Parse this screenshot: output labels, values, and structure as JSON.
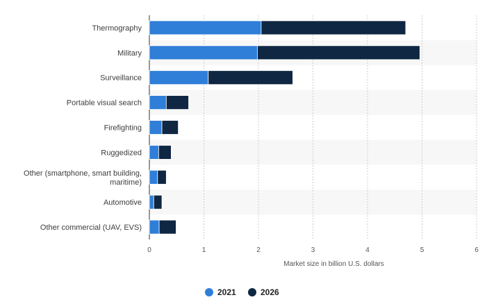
{
  "chart_data": {
    "type": "bar",
    "orientation": "horizontal",
    "stacked": true,
    "categories": [
      "Thermography",
      "Military",
      "Surveillance",
      "Portable visual search",
      "Firefighting",
      "Ruggedized",
      "Other (smartphone, smart building, maritime)",
      "Automotive",
      "Other commercial (UAV, EVS)"
    ],
    "category_lines": [
      [
        "Thermography"
      ],
      [
        "Military"
      ],
      [
        "Surveillance"
      ],
      [
        "Portable visual search"
      ],
      [
        "Firefighting"
      ],
      [
        "Ruggedized"
      ],
      [
        "Other (smartphone, smart building,",
        "maritime)"
      ],
      [
        "Automotive"
      ],
      [
        "Other commercial (UAV, EVS)"
      ]
    ],
    "series": [
      {
        "name": "2021",
        "color": "#2f7ed8",
        "values": [
          2.05,
          1.98,
          1.08,
          0.31,
          0.23,
          0.17,
          0.15,
          0.08,
          0.18
        ]
      },
      {
        "name": "2026",
        "color": "#0f2742",
        "values": [
          2.65,
          2.98,
          1.55,
          0.41,
          0.3,
          0.23,
          0.16,
          0.15,
          0.31
        ]
      }
    ],
    "xlabel": "Market size in billion U.S. dollars",
    "ylabel": "",
    "xlim": [
      0,
      6
    ],
    "xticks": [
      0,
      1,
      2,
      3,
      4,
      5,
      6
    ],
    "grid": "vertical",
    "legend_position": "bottom-center"
  }
}
